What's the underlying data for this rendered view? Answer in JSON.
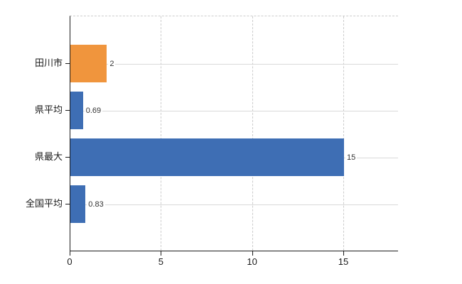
{
  "chart_data": {
    "type": "bar",
    "orientation": "horizontal",
    "title": "",
    "categories": [
      "田川市",
      "県平均",
      "県最大",
      "全国平均"
    ],
    "values": [
      2,
      0.69,
      15,
      0.83
    ],
    "value_labels": [
      "2",
      "0.69",
      "15",
      "0.83"
    ],
    "series": [
      {
        "name": "",
        "values": [
          2,
          0.69,
          15,
          0.83
        ]
      }
    ],
    "bar_colors": [
      "#f0953d",
      "#3e6eb4",
      "#3e6eb4",
      "#3e6eb4"
    ],
    "x_ticks": [
      0,
      5,
      10,
      15
    ],
    "x_tick_labels": [
      "0",
      "5",
      "10",
      "15"
    ],
    "xlim": [
      0,
      18
    ],
    "xlabel": "",
    "ylabel": "",
    "grid": {
      "vertical": "dashed",
      "horizontal_row_lines": true,
      "top_border": "dashed"
    },
    "legend": null
  },
  "colors": {
    "background": "#ffffff",
    "axis": "#1a1a1a",
    "gridline": "#cccccc",
    "row_line": "#d9d9d9",
    "bar_orange": "#f0953d",
    "bar_blue": "#3e6eb4",
    "value_label_text": "#333333",
    "category_label_text": "#1a1a1a"
  }
}
